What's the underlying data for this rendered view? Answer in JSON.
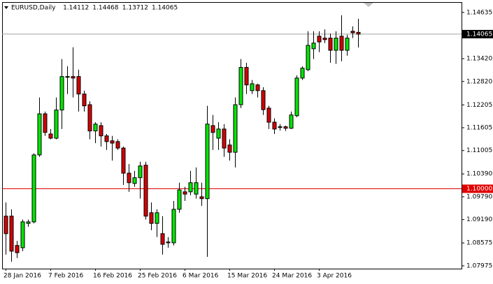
{
  "chart_data": {
    "type": "candlestick",
    "title": "EURUSD,Daily",
    "header_values": [
      1.14112,
      1.14468,
      1.13712,
      1.14065
    ],
    "categories": [
      "28 Jan 2016",
      null,
      null,
      null,
      null,
      null,
      null,
      null,
      "7 Feb 2016",
      null,
      null,
      null,
      null,
      null,
      null,
      null,
      "16 Feb 2016",
      null,
      null,
      null,
      null,
      null,
      null,
      null,
      "25 Feb 2016",
      null,
      null,
      null,
      null,
      null,
      null,
      null,
      "6 Mar 2016",
      null,
      null,
      null,
      null,
      null,
      null,
      null,
      "15 Mar 2016",
      null,
      null,
      null,
      null,
      null,
      null,
      null,
      "24 Mar 2016",
      null,
      null,
      null,
      null,
      null,
      null,
      null,
      "3 Apr 2016",
      null,
      null,
      null,
      null,
      null,
      null,
      null
    ],
    "open": [
      1.0928,
      1.0928,
      1.0851,
      1.0845,
      1.0909,
      1.0913,
      1.1089,
      1.1197,
      1.1144,
      1.1133,
      1.1207,
      1.1293,
      1.1295,
      1.1295,
      1.1249,
      1.1221,
      1.1152,
      1.1166,
      1.1139,
      1.1126,
      1.1124,
      1.1107,
      1.1041,
      1.1014,
      1.1029,
      1.1062,
      1.0937,
      1.0909,
      1.0882,
      1.086,
      1.0858,
      1.0946,
      1.0992,
      1.0992,
      1.0986,
      1.0979,
      1.0974,
      1.1166,
      1.1133,
      1.1157,
      1.1115,
      1.1096,
      1.1221,
      1.1319,
      1.1258,
      1.1273,
      1.1258,
      1.1212,
      1.1175,
      1.1161,
      1.1163,
      1.1159,
      1.1192,
      1.1291,
      1.1313,
      1.1368,
      1.1401,
      1.1396,
      1.1396,
      1.1364,
      1.1401,
      1.1364,
      1.1414,
      1.14112
    ],
    "high": [
      1.0964,
      1.0946,
      1.0863,
      1.0919,
      1.0919,
      1.1093,
      1.124,
      1.1203,
      1.1157,
      1.124,
      1.1341,
      1.1322,
      1.1372,
      1.1313,
      1.1258,
      1.123,
      1.1175,
      1.1175,
      1.1144,
      1.1139,
      1.113,
      1.1111,
      1.1065,
      1.1047,
      1.1071,
      1.1071,
      1.0964,
      1.0946,
      1.0928,
      1.0873,
      1.0968,
      1.1016,
      1.1005,
      1.1047,
      1.1056,
      1.1016,
      1.1218,
      1.1194,
      1.1175,
      1.117,
      1.113,
      1.124,
      1.1341,
      1.1331,
      1.1286,
      1.1276,
      1.1267,
      1.1218,
      1.1185,
      1.117,
      1.1166,
      1.1203,
      1.1298,
      1.1322,
      1.1414,
      1.1414,
      1.1414,
      1.1419,
      1.1408,
      1.1414,
      1.1456,
      1.1405,
      1.1427,
      1.14468
    ],
    "low": [
      1.0827,
      1.0808,
      1.0818,
      1.0836,
      1.09,
      1.0909,
      1.1084,
      1.1139,
      1.113,
      1.113,
      1.1157,
      1.1249,
      1.124,
      1.1203,
      1.1203,
      1.113,
      1.112,
      1.1111,
      1.1102,
      1.1074,
      1.1102,
      1.101,
      1.0992,
      1.1005,
      1.0974,
      1.0919,
      1.0891,
      1.0873,
      1.0827,
      1.0845,
      1.0851,
      1.0937,
      1.0968,
      1.0983,
      1.0974,
      1.0955,
      1.0821,
      1.1102,
      1.1102,
      1.1084,
      1.1074,
      1.1056,
      1.1212,
      1.1249,
      1.1249,
      1.124,
      1.1194,
      1.1157,
      1.1144,
      1.1153,
      1.1152,
      1.1157,
      1.1188,
      1.1286,
      1.1309,
      1.1341,
      1.1359,
      1.1383,
      1.1331,
      1.1328,
      1.1335,
      1.135,
      1.1396,
      1.13712
    ],
    "close": [
      1.0882,
      1.0836,
      1.0832,
      1.0913,
      1.0913,
      1.1089,
      1.1197,
      1.1148,
      1.1133,
      1.1207,
      1.1295,
      1.1295,
      1.1291,
      1.1249,
      1.1218,
      1.1152,
      1.117,
      1.1139,
      1.1124,
      1.112,
      1.1107,
      1.1041,
      1.1016,
      1.1029,
      1.106,
      1.0928,
      1.0909,
      1.0937,
      1.0854,
      1.0858,
      1.0946,
      1.0997,
      1.0986,
      1.1016,
      1.1016,
      1.0974,
      1.117,
      1.1148,
      1.1157,
      1.1107,
      1.1096,
      1.1221,
      1.1319,
      1.1273,
      1.1276,
      1.1258,
      1.1208,
      1.1175,
      1.1157,
      1.1163,
      1.1159,
      1.1194,
      1.1291,
      1.1317,
      1.1377,
      1.1383,
      1.1386,
      1.1392,
      1.1364,
      1.1396,
      1.1364,
      1.1396,
      1.141,
      1.14065
    ],
    "up_color": "#00e600",
    "down_color": "#d40000",
    "ylim": [
      1.079,
      1.1487
    ],
    "yticks": [
      1.07975,
      1.08575,
      {
        "value": 1.0919,
        "label": "1.09190"
      },
      {
        "value": 1.0979,
        "label": "1.09790"
      },
      {
        "value": 1.1039,
        "label": "1.10390"
      },
      1.11005,
      1.11605,
      1.12205,
      {
        "value": 1.1282,
        "label": "1.12820"
      },
      {
        "value": 1.1342,
        "label": "1.13420"
      },
      1.14635
    ],
    "price_line": 1.14065,
    "price_line_color": "#a0a0a0",
    "level_line": {
      "value": 1.1,
      "label": "1.10000"
    },
    "level_color": "#e00000",
    "grid": false
  }
}
